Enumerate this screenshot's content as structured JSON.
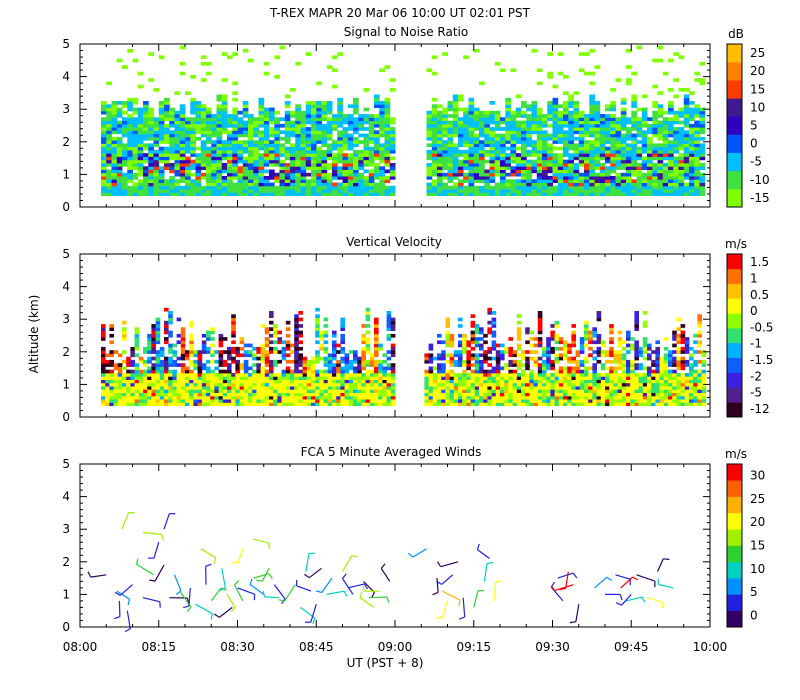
{
  "header": {
    "line1": "T-REX   MAPR 20 Mar 06   10:00 UT   02:01   PST",
    "line2": "Signal to Noise Ratio"
  },
  "colors": {
    "snr": [
      "#7fff00",
      "#40e040",
      "#00bfff",
      "#0055ff",
      "#3000c0",
      "#401890",
      "#ff3c00",
      "#ff7f00",
      "#ffbf00"
    ],
    "vel": [
      "#300020",
      "#502090",
      "#3a20e0",
      "#1060ff",
      "#00b0ff",
      "#30e070",
      "#90ff00",
      "#ffff00",
      "#ffc000",
      "#ff7000",
      "#ff0000"
    ],
    "wind": [
      "#300060",
      "#2020e0",
      "#0090ff",
      "#00d0c0",
      "#30d030",
      "#a0f000",
      "#ffff00",
      "#ffb000",
      "#ff6000",
      "#ff0000"
    ]
  },
  "chart_data": [
    {
      "type": "heatmap",
      "title": "Signal to Noise Ratio",
      "xlabel": "UT  (PST + 8)",
      "ylabel": "",
      "x_ticks": [
        "08:00",
        "08:15",
        "08:30",
        "08:45",
        "09:00",
        "09:15",
        "09:30",
        "09:45",
        "10:00"
      ],
      "x_range_minutes": [
        0,
        120
      ],
      "y_ticks": [
        "0",
        "1",
        "2",
        "3",
        "4",
        "5"
      ],
      "ylim": [
        0,
        5
      ],
      "colorbar_unit": "dB",
      "colorbar_labels": [
        "25",
        "20",
        "15",
        "10",
        "5",
        "0",
        "-5",
        "-10",
        "-15"
      ],
      "data_gap_minutes": [
        59.5,
        65.5
      ],
      "data_start_minutes": 4,
      "data_end_minutes": 119,
      "lowest_gate_km": 0.35,
      "typical_top_km": 3.3
    },
    {
      "type": "heatmap",
      "title": "Vertical Velocity",
      "ylabel": "Altitude (km)",
      "y_ticks": [
        "0",
        "1",
        "2",
        "3",
        "4",
        "5"
      ],
      "ylim": [
        0,
        5
      ],
      "colorbar_unit": "m/s",
      "colorbar_labels": [
        "1.5",
        "1",
        "0.5",
        "0",
        "-0.5",
        "-1",
        "-1.5",
        "-2",
        "-5",
        "-12"
      ],
      "data_gap_minutes": [
        59.5,
        65.5
      ],
      "lowest_gate_km": 0.35,
      "typical_top_km": 3.3
    },
    {
      "type": "scatter",
      "title": "FCA 5 Minute Averaged Winds",
      "y_ticks": [
        "0",
        "1",
        "2",
        "3",
        "4",
        "5"
      ],
      "ylim": [
        0,
        5
      ],
      "colorbar_unit": "m/s",
      "colorbar_labels": [
        "30",
        "25",
        "20",
        "15",
        "10",
        "5",
        "0"
      ],
      "barbs": [
        {
          "t": 5,
          "alt": 1.6,
          "spd": 2
        },
        {
          "t": 7,
          "alt": 1.1,
          "spd": 6
        },
        {
          "t": 7.5,
          "alt": 0.8,
          "spd": 4
        },
        {
          "t": 8,
          "alt": 3.0,
          "spd": 16
        },
        {
          "t": 9,
          "alt": 0.5,
          "spd": 3
        },
        {
          "t": 10,
          "alt": 1.3,
          "spd": 5
        },
        {
          "t": 12,
          "alt": 2.9,
          "spd": 17
        },
        {
          "t": 12,
          "alt": 0.9,
          "spd": 3
        },
        {
          "t": 14,
          "alt": 1.6,
          "spd": 12
        },
        {
          "t": 15,
          "alt": 2.6,
          "spd": 4
        },
        {
          "t": 16,
          "alt": 3.0,
          "spd": 3
        },
        {
          "t": 16,
          "alt": 1.9,
          "spd": 2
        },
        {
          "t": 17,
          "alt": 0.9,
          "spd": 2
        },
        {
          "t": 18,
          "alt": 1.6,
          "spd": 7
        },
        {
          "t": 19,
          "alt": 1.1,
          "spd": 14
        },
        {
          "t": 21,
          "alt": 1.2,
          "spd": 4
        },
        {
          "t": 22,
          "alt": 0.7,
          "spd": 11
        },
        {
          "t": 23,
          "alt": 2.4,
          "spd": 15
        },
        {
          "t": 24,
          "alt": 1.3,
          "spd": 3
        },
        {
          "t": 25,
          "alt": 0.8,
          "spd": 12
        },
        {
          "t": 27,
          "alt": 1.8,
          "spd": 11
        },
        {
          "t": 28,
          "alt": 1.0,
          "spd": 16
        },
        {
          "t": 29,
          "alt": 0.6,
          "spd": 2
        },
        {
          "t": 30,
          "alt": 1.2,
          "spd": 5
        },
        {
          "t": 31,
          "alt": 2.4,
          "spd": 18
        },
        {
          "t": 31,
          "alt": 0.8,
          "spd": 14
        },
        {
          "t": 33,
          "alt": 1.5,
          "spd": 12
        },
        {
          "t": 33,
          "alt": 2.7,
          "spd": 16
        },
        {
          "t": 35,
          "alt": 1.0,
          "spd": 8
        },
        {
          "t": 36,
          "alt": 1.8,
          "spd": 13
        },
        {
          "t": 37,
          "alt": 1.3,
          "spd": 4
        },
        {
          "t": 38,
          "alt": 0.9,
          "spd": 10
        },
        {
          "t": 41,
          "alt": 1.3,
          "spd": 14
        },
        {
          "t": 42,
          "alt": 0.6,
          "spd": 11
        },
        {
          "t": 43,
          "alt": 1.7,
          "spd": 10
        },
        {
          "t": 44,
          "alt": 1.1,
          "spd": 5
        },
        {
          "t": 45,
          "alt": 0.7,
          "spd": 3
        },
        {
          "t": 46,
          "alt": 1.8,
          "spd": 2
        },
        {
          "t": 47,
          "alt": 1.0,
          "spd": 9
        },
        {
          "t": 48,
          "alt": 1.5,
          "spd": 6
        },
        {
          "t": 50,
          "alt": 1.7,
          "spd": 15
        },
        {
          "t": 51,
          "alt": 1.2,
          "spd": 3
        },
        {
          "t": 52,
          "alt": 1.0,
          "spd": 4
        },
        {
          "t": 54,
          "alt": 1.4,
          "spd": 1
        },
        {
          "t": 55,
          "alt": 0.9,
          "spd": 13
        },
        {
          "t": 56,
          "alt": 0.6,
          "spd": 15
        },
        {
          "t": 57,
          "alt": 1.1,
          "spd": 17
        },
        {
          "t": 59,
          "alt": 1.4,
          "spd": 2
        },
        {
          "t": 66,
          "alt": 2.4,
          "spd": 6
        },
        {
          "t": 68,
          "alt": 1.5,
          "spd": 2
        },
        {
          "t": 69,
          "alt": 1.1,
          "spd": 23
        },
        {
          "t": 70,
          "alt": 0.8,
          "spd": 20
        },
        {
          "t": 71,
          "alt": 1.6,
          "spd": 3
        },
        {
          "t": 72,
          "alt": 2.0,
          "spd": 2
        },
        {
          "t": 73,
          "alt": 0.9,
          "spd": 4
        },
        {
          "t": 75,
          "alt": 0.6,
          "spd": 12
        },
        {
          "t": 77,
          "alt": 1.4,
          "spd": 10
        },
        {
          "t": 78,
          "alt": 2.1,
          "spd": 3
        },
        {
          "t": 79,
          "alt": 0.8,
          "spd": 18
        },
        {
          "t": 91,
          "alt": 1.5,
          "spd": 3
        },
        {
          "t": 92,
          "alt": 0.8,
          "spd": 4
        },
        {
          "t": 93,
          "alt": 1.7,
          "spd": 28
        },
        {
          "t": 94,
          "alt": 1.3,
          "spd": 30
        },
        {
          "t": 95,
          "alt": 0.7,
          "spd": 2
        },
        {
          "t": 98,
          "alt": 1.2,
          "spd": 8
        },
        {
          "t": 100,
          "alt": 1.0,
          "spd": 5
        },
        {
          "t": 102,
          "alt": 1.6,
          "spd": 3
        },
        {
          "t": 103,
          "alt": 1.2,
          "spd": 30
        },
        {
          "t": 104,
          "alt": 0.8,
          "spd": 11
        },
        {
          "t": 105,
          "alt": 1.0,
          "spd": 3
        },
        {
          "t": 106,
          "alt": 1.6,
          "spd": 2
        },
        {
          "t": 108,
          "alt": 0.9,
          "spd": 20
        },
        {
          "t": 110,
          "alt": 1.7,
          "spd": 2
        },
        {
          "t": 113,
          "alt": 1.2,
          "spd": 10
        }
      ]
    }
  ],
  "axes": {
    "altitude_label": "Altitude (km)",
    "x_axis_label": "UT  (PST + 8)"
  }
}
